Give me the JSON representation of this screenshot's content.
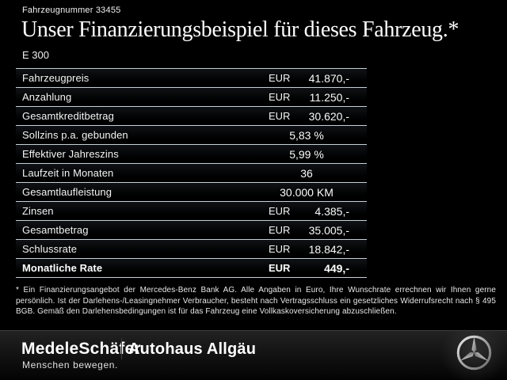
{
  "header": {
    "vehicle_number": "Fahrzeugnummer 33455",
    "title": "Unser Finanzierungsbeispiel für dieses Fahrzeug.*",
    "model": "E 300"
  },
  "table": {
    "rows": [
      {
        "label": "Fahrzeugpreis",
        "currency": "EUR",
        "value": "41.870,-",
        "emphasis": false
      },
      {
        "label": "Anzahlung",
        "currency": "EUR",
        "value": "11.250,-",
        "emphasis": false
      },
      {
        "label": "Gesamtkreditbetrag",
        "currency": "EUR",
        "value": "30.620,-",
        "emphasis": false
      },
      {
        "label": "Sollzins p.a. gebunden",
        "currency": "",
        "value": "5,83 %",
        "emphasis": false
      },
      {
        "label": "Effektiver Jahreszins",
        "currency": "",
        "value": "5,99 %",
        "emphasis": false
      },
      {
        "label": "Laufzeit in Monaten",
        "currency": "",
        "value": "36",
        "emphasis": false
      },
      {
        "label": "Gesamtlaufleistung",
        "currency": "",
        "value": "30.000 KM",
        "emphasis": false
      },
      {
        "label": "Zinsen",
        "currency": "EUR",
        "value": "4.385,-",
        "emphasis": false
      },
      {
        "label": "Gesamtbetrag",
        "currency": "EUR",
        "value": "35.005,-",
        "emphasis": false
      },
      {
        "label": "Schlussrate",
        "currency": "EUR",
        "value": "18.842,-",
        "emphasis": false
      },
      {
        "label": "Monatliche Rate",
        "currency": "EUR",
        "value": "449,-",
        "emphasis": true
      }
    ]
  },
  "footnote": {
    "text": "* Ein Finanzierungsangebot der Mercedes-Benz Bank AG. Alle Angaben in Euro, Ihre Wunschrate errechnen wir Ihnen gerne persönlich. Ist der Darlehens-/Leasingnehmer Verbraucher, besteht nach Vertragsschluss ein gesetzliches Widerrufsrecht nach § 495 BGB. Gemäß den Darlehensbedingungen ist für das Fahrzeug eine Vollkaskoversicherung abzuschließen."
  },
  "footer": {
    "dealer_primary": "MedeleSchäfer",
    "dealer_secondary": "Autohaus Allgäu",
    "tagline": "Menschen bewegen.",
    "brand_icon": "mercedes-star-icon"
  },
  "colors": {
    "background": "#000000",
    "text": "#ffffff",
    "table_line": "#c7d0d9",
    "footnote_text": "#e8e8e8",
    "footer_divider": "#3c3c3c"
  }
}
